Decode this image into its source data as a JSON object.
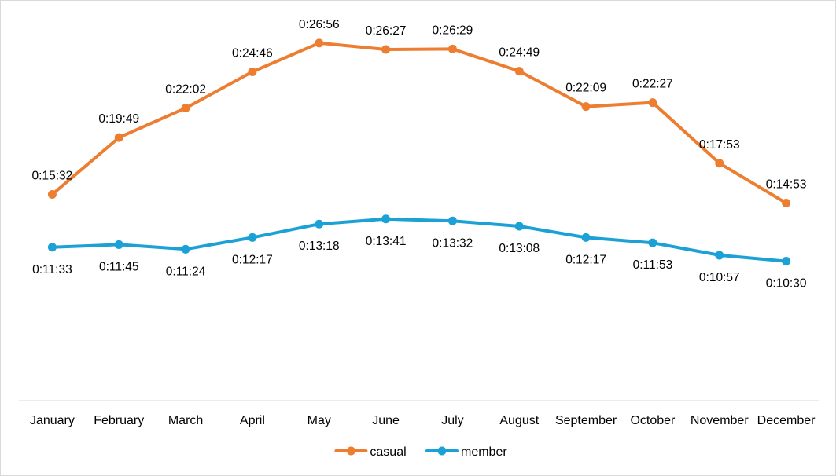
{
  "chart_data": {
    "type": "line",
    "categories": [
      "January",
      "February",
      "March",
      "April",
      "May",
      "June",
      "July",
      "August",
      "September",
      "October",
      "November",
      "December"
    ],
    "series": [
      {
        "name": "casual",
        "color": "#ed7d31",
        "values": [
          "0:15:32",
          "0:19:49",
          "0:22:02",
          "0:24:46",
          "0:26:56",
          "0:26:27",
          "0:26:29",
          "0:24:49",
          "0:22:09",
          "0:22:27",
          "0:17:53",
          "0:14:53"
        ]
      },
      {
        "name": "member",
        "color": "#1ba1d6",
        "values": [
          "0:11:33",
          "0:11:45",
          "0:11:24",
          "0:12:17",
          "0:13:18",
          "0:13:41",
          "0:13:32",
          "0:13:08",
          "0:12:17",
          "0:11:53",
          "0:10:57",
          "0:10:30"
        ]
      }
    ],
    "ylim": [
      "0:00:00",
      "0:30:00"
    ],
    "grid": false,
    "legend": "bottom",
    "title": "",
    "xlabel": "",
    "ylabel": ""
  }
}
